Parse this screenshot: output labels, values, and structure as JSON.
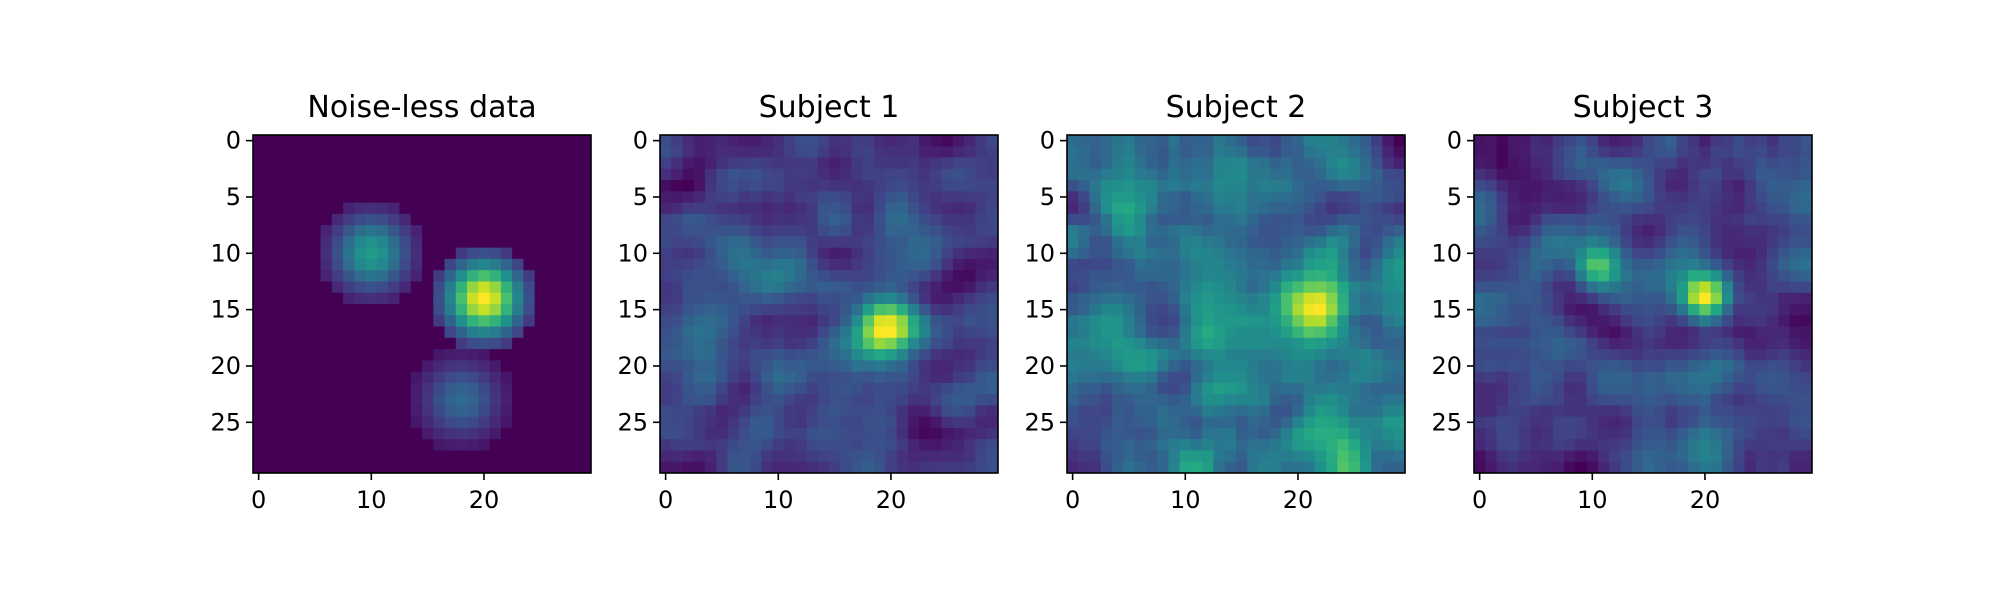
{
  "chart_data": [
    {
      "type": "heatmap",
      "title": "Noise-less data",
      "colormap": "viridis",
      "grid": false,
      "xlabel": "",
      "ylabel": "",
      "shape": [
        30,
        30
      ],
      "xlim": [
        -0.5,
        29.5
      ],
      "ylim": [
        29.5,
        -0.5
      ],
      "xticks": [
        0,
        10,
        20
      ],
      "yticks": [
        0,
        5,
        10,
        15,
        20,
        25
      ],
      "values": {
        "kind": "gaussian_blobs",
        "base": 0.0,
        "blobs": [
          {
            "row": 10,
            "col": 10,
            "amplitude": 0.55,
            "sigma": 2.4,
            "radius": 4.6
          },
          {
            "row": 14,
            "col": 20,
            "amplitude": 1.0,
            "sigma": 2.4,
            "radius": 4.6
          },
          {
            "row": 23,
            "col": 18,
            "amplitude": 0.35,
            "sigma": 2.4,
            "radius": 4.6
          }
        ]
      }
    },
    {
      "type": "heatmap",
      "title": "Subject 1",
      "colormap": "viridis",
      "grid": false,
      "xlabel": "",
      "ylabel": "",
      "shape": [
        30,
        30
      ],
      "xlim": [
        -0.5,
        29.5
      ],
      "ylim": [
        29.5,
        -0.5
      ],
      "xticks": [
        0,
        10,
        20
      ],
      "yticks": [
        0,
        5,
        10,
        15,
        20,
        25
      ],
      "values": {
        "kind": "smooth_noise",
        "base": 0.35,
        "noise_level": 0.2,
        "seed": 11,
        "blobs": [
          {
            "row": 16.5,
            "col": 19.5,
            "amplitude": 0.6,
            "sigma": 1.9
          },
          {
            "row": 12,
            "col": 10,
            "amplitude": 0.15,
            "sigma": 1.8
          }
        ]
      }
    },
    {
      "type": "heatmap",
      "title": "Subject 2",
      "colormap": "viridis",
      "grid": false,
      "xlabel": "",
      "ylabel": "",
      "shape": [
        30,
        30
      ],
      "xlim": [
        -0.5,
        29.5
      ],
      "ylim": [
        29.5,
        -0.5
      ],
      "xticks": [
        0,
        10,
        20
      ],
      "yticks": [
        0,
        5,
        10,
        15,
        20,
        25
      ],
      "values": {
        "kind": "smooth_noise",
        "base": 0.38,
        "noise_level": 0.22,
        "seed": 23,
        "blobs": [
          {
            "row": 14.5,
            "col": 21.5,
            "amplitude": 0.55,
            "sigma": 2.1
          },
          {
            "row": 18,
            "col": 12,
            "amplitude": 0.12,
            "sigma": 1.5
          }
        ]
      }
    },
    {
      "type": "heatmap",
      "title": "Subject 3",
      "colormap": "viridis",
      "grid": false,
      "xlabel": "",
      "ylabel": "",
      "shape": [
        30,
        30
      ],
      "xlim": [
        -0.5,
        29.5
      ],
      "ylim": [
        29.5,
        -0.5
      ],
      "xticks": [
        0,
        10,
        20
      ],
      "yticks": [
        0,
        5,
        10,
        15,
        20,
        25
      ],
      "values": {
        "kind": "smooth_noise",
        "base": 0.33,
        "noise_level": 0.2,
        "seed": 37,
        "blobs": [
          {
            "row": 11,
            "col": 10.5,
            "amplitude": 0.45,
            "sigma": 1.5
          },
          {
            "row": 14,
            "col": 20,
            "amplitude": 0.55,
            "sigma": 1.5
          }
        ]
      }
    }
  ]
}
